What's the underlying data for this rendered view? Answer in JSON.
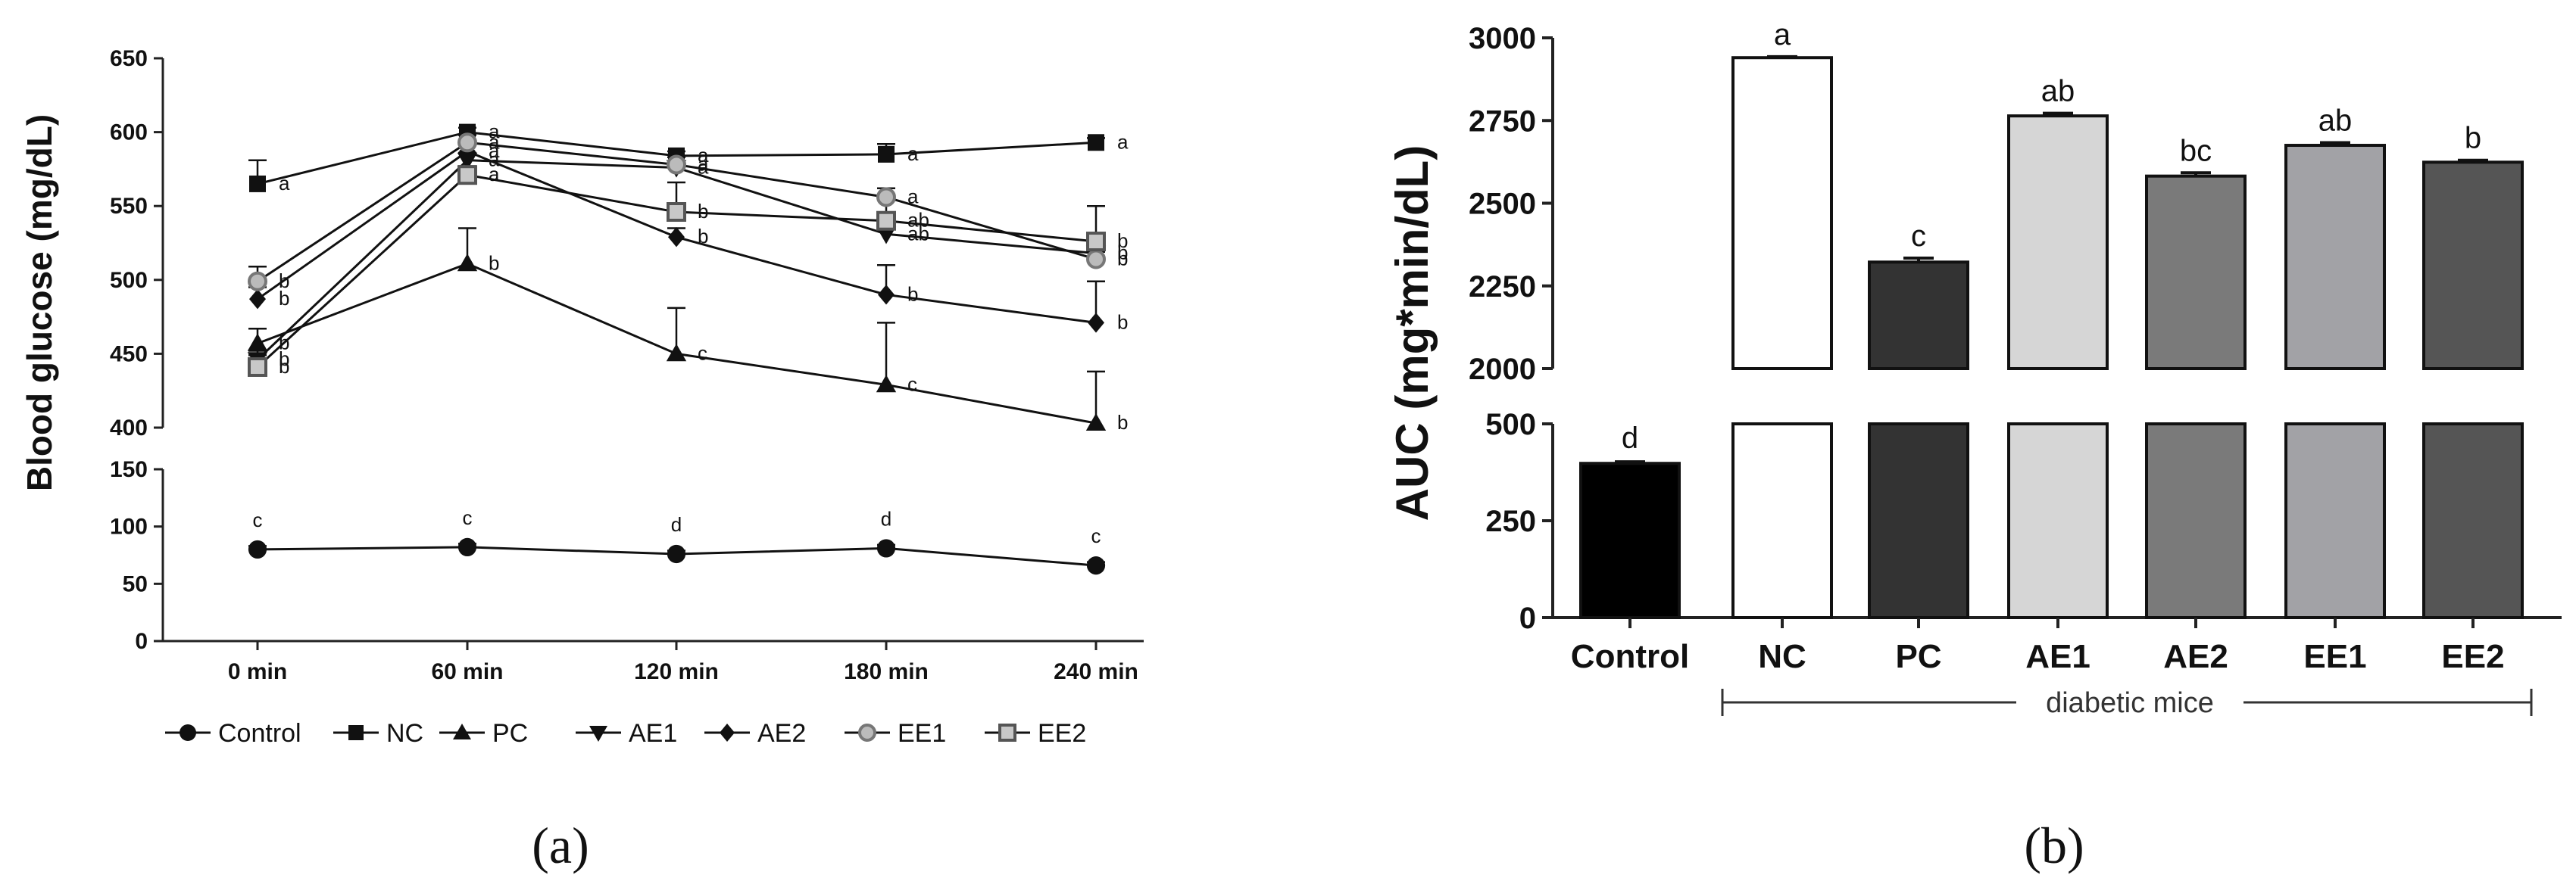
{
  "panel_a_label": "(a)",
  "panel_b_label": "(b)",
  "chart_data": [
    {
      "type": "line",
      "id": "a",
      "ylabel": "Blood  glucose  (mg/dL)",
      "categories": [
        "0 min",
        "60 min",
        "120 min",
        "180 min",
        "240 min"
      ],
      "y_axis_segments": [
        {
          "range": [
            0,
            150
          ],
          "ticks": [
            0,
            50,
            100,
            150
          ]
        },
        {
          "range": [
            400,
            650
          ],
          "ticks": [
            400,
            450,
            500,
            550,
            600,
            650
          ]
        }
      ],
      "series": [
        {
          "name": "Control",
          "marker": "circle",
          "values": [
            80,
            82,
            76,
            81,
            66
          ],
          "errors": [
            3,
            3,
            3,
            3,
            3
          ],
          "letters": [
            "c",
            "c",
            "d",
            "d",
            "c"
          ]
        },
        {
          "name": "NC",
          "marker": "square",
          "values": [
            565,
            600,
            584,
            585,
            593
          ],
          "errors": [
            16,
            3,
            3,
            7,
            3
          ],
          "letters": [
            "a",
            "a",
            "a",
            "a",
            "a"
          ]
        },
        {
          "name": "PC",
          "marker": "triangle-up",
          "values": [
            457,
            511,
            450,
            429,
            403
          ],
          "errors": [
            10,
            24,
            31,
            42,
            35
          ],
          "letters": [
            "b",
            "b",
            "c",
            "c",
            "b"
          ]
        },
        {
          "name": "AE1",
          "marker": "triangle-down",
          "values": [
            446,
            581,
            576,
            531,
            518
          ],
          "errors": [
            6,
            5,
            4,
            6,
            5
          ],
          "letters": [
            "b",
            "a",
            "a",
            "ab",
            "b"
          ]
        },
        {
          "name": "AE2",
          "marker": "diamond",
          "values": [
            487,
            587,
            529,
            490,
            471
          ],
          "errors": [
            8,
            5,
            6,
            20,
            28
          ],
          "letters": [
            "b",
            "a",
            "b",
            "b",
            "b"
          ]
        },
        {
          "name": "EE1",
          "marker": "circle-open",
          "values": [
            499,
            593,
            578,
            556,
            514
          ],
          "errors": [
            10,
            5,
            5,
            6,
            5
          ],
          "letters": [
            "b",
            "a",
            "a",
            "a",
            "b"
          ]
        },
        {
          "name": "EE2",
          "marker": "square-open",
          "values": [
            441,
            571,
            546,
            540,
            526
          ],
          "errors": [
            8,
            6,
            20,
            18,
            24
          ],
          "letters": [
            "b",
            "a",
            "b",
            "ab",
            "b"
          ]
        }
      ],
      "legend": [
        "Control",
        "NC",
        "PC",
        "AE1",
        "AE2",
        "EE1",
        "EE2"
      ]
    },
    {
      "type": "bar",
      "id": "b",
      "ylabel": "AUC (mg*min/dL)",
      "categories": [
        "Control",
        "NC",
        "PC",
        "AE1",
        "AE2",
        "EE1",
        "EE2"
      ],
      "values": [
        398,
        2940,
        2322,
        2764,
        2582,
        2675,
        2624
      ],
      "errors": [
        4,
        3,
        12,
        8,
        10,
        8,
        6
      ],
      "letters": [
        "d",
        "a",
        "c",
        "ab",
        "bc",
        "ab",
        "b"
      ],
      "colors": [
        "#000000",
        "#ffffff",
        "#333333",
        "#d6d6d6",
        "#7a7a7a",
        "#a2a2a6",
        "#555555"
      ],
      "y_axis_segments": [
        {
          "range": [
            0,
            500
          ],
          "ticks": [
            0,
            250,
            500
          ]
        },
        {
          "range": [
            2000,
            3000
          ],
          "ticks": [
            2000,
            2250,
            2500,
            2750,
            3000
          ]
        }
      ],
      "bracket_label": "diabetic mice"
    }
  ]
}
